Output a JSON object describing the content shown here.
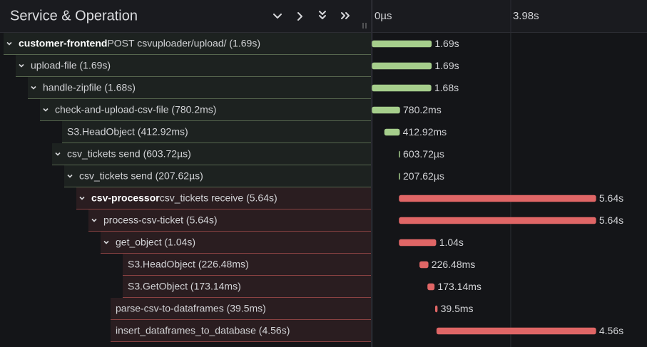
{
  "header": {
    "title": "Service & Operation"
  },
  "timeline": {
    "xlim": [
      0,
      7.9
    ],
    "ticks": [
      {
        "value": 0,
        "label": "0µs"
      },
      {
        "value": 3.98,
        "label": "3.98s"
      }
    ]
  },
  "rows": [
    {
      "depth": 0,
      "has_children": true,
      "service": "customer-frontend",
      "operation": "POST csvuploader/upload/ (1.69s)",
      "color": "#a6ce8c",
      "start": 0,
      "duration": 1.69,
      "duration_label": "1.69s"
    },
    {
      "depth": 1,
      "has_children": true,
      "operation": "upload-file (1.69s)",
      "color": "#a6ce8c",
      "start": 0,
      "duration": 1.69,
      "duration_label": "1.69s"
    },
    {
      "depth": 2,
      "has_children": true,
      "operation": "handle-zipfile (1.68s)",
      "color": "#a6ce8c",
      "start": 0,
      "duration": 1.68,
      "duration_label": "1.68s"
    },
    {
      "depth": 3,
      "has_children": true,
      "operation": "check-and-upload-csv-file (780.2ms)",
      "color": "#a6ce8c",
      "start": 0,
      "duration": 0.7802,
      "duration_label": "780.2ms"
    },
    {
      "depth": 4,
      "has_children": false,
      "operation": "S3.HeadObject (412.92ms)",
      "color": "#a6ce8c",
      "start": 0.36,
      "duration": 0.41292,
      "duration_label": "412.92ms"
    },
    {
      "depth": 4,
      "has_children": true,
      "operation": "csv_tickets send (603.72µs)",
      "color": "#a6ce8c",
      "start": 0.78,
      "duration": 0.00060372,
      "duration_label": "603.72µs"
    },
    {
      "depth": 5,
      "has_children": true,
      "operation": "csv_tickets send (207.62µs)",
      "color": "#a6ce8c",
      "start": 0.78,
      "duration": 0.00020762,
      "duration_label": "207.62µs"
    },
    {
      "depth": 6,
      "has_children": true,
      "service": "csv-processor",
      "operation": "csv_tickets receive (5.64s)",
      "color": "#e06666",
      "start": 0.78,
      "duration": 5.64,
      "duration_label": "5.64s"
    },
    {
      "depth": 7,
      "has_children": true,
      "operation": "process-csv-ticket (5.64s)",
      "color": "#e06666",
      "start": 0.78,
      "duration": 5.64,
      "duration_label": "5.64s"
    },
    {
      "depth": 8,
      "has_children": true,
      "operation": "get_object (1.04s)",
      "color": "#e06666",
      "start": 0.78,
      "duration": 1.04,
      "duration_label": "1.04s"
    },
    {
      "depth": 9,
      "has_children": false,
      "operation": "S3.HeadObject (226.48ms)",
      "color": "#e06666",
      "start": 1.37,
      "duration": 0.22648,
      "duration_label": "226.48ms"
    },
    {
      "depth": 9,
      "has_children": false,
      "operation": "S3.GetObject (173.14ms)",
      "color": "#e06666",
      "start": 1.6,
      "duration": 0.17314,
      "duration_label": "173.14ms"
    },
    {
      "depth": 8,
      "has_children": false,
      "operation": "parse-csv-to-dataframes (39.5ms)",
      "color": "#e06666",
      "start": 1.82,
      "duration": 0.0395,
      "duration_label": "39.5ms"
    },
    {
      "depth": 8,
      "has_children": false,
      "operation": "insert_dataframes_to_database (4.56s)",
      "color": "#e06666",
      "start": 1.86,
      "duration": 4.56,
      "duration_label": "4.56s"
    }
  ]
}
